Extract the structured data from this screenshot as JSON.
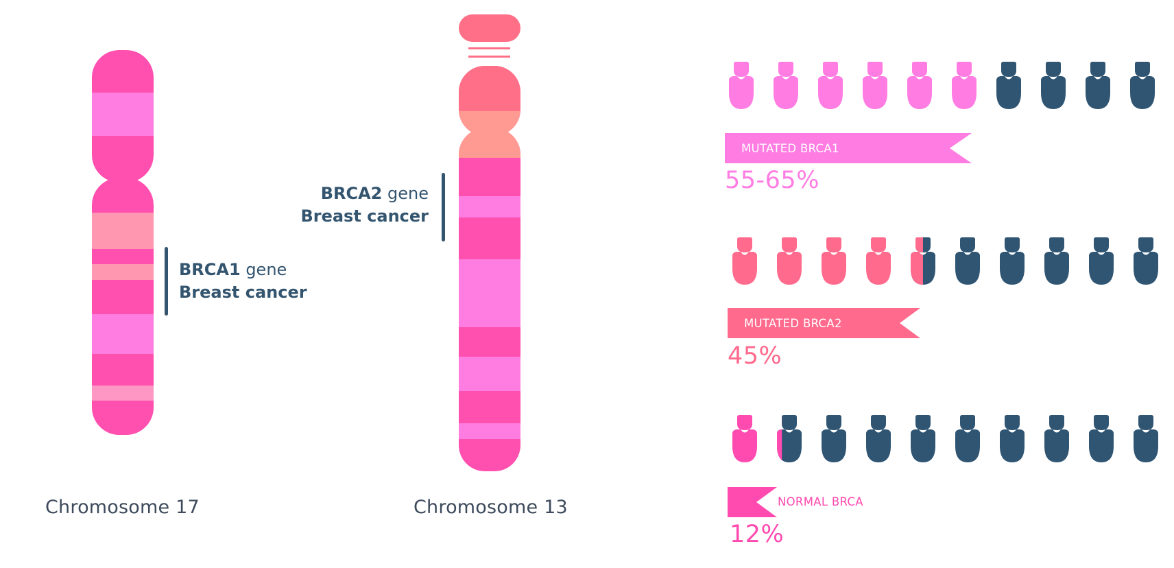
{
  "colors": {
    "navy": "#2f5573",
    "label_gray": "#3d4a5c",
    "hot_pink": "#ff4faf",
    "light_magenta": "#ff7de0",
    "salmon": "#ff7088",
    "peach": "#ff9a92",
    "light_rose": "#ff97b8",
    "brca1_pink": "#ff7ce2",
    "brca2_pink": "#ff6a8d",
    "normal_pink": "#ff4ab0"
  },
  "chromosome17": {
    "label": "Chromosome 17",
    "gene_name": "BRCA1",
    "gene_suffix": "gene",
    "disease": "Breast cancer"
  },
  "chromosome13": {
    "label": "Chromosome 13",
    "gene_name": "BRCA2",
    "gene_suffix": "gene",
    "disease": "Breast cancer"
  },
  "risk_rows": [
    {
      "banner_label": "MUTATED BRCA1",
      "percent_label": "55-65%",
      "color": "#ff7ce2",
      "people_total": 10,
      "people_highlighted": 6
    },
    {
      "banner_label": "MUTATED BRCA2",
      "percent_label": "45%",
      "color": "#ff6a8d",
      "people_total": 10,
      "people_highlighted": 4.5
    },
    {
      "banner_label": "NORMAL BRCA",
      "percent_label": "12%",
      "color": "#ff4ab0",
      "people_total": 10,
      "people_highlighted": 1.2
    }
  ]
}
